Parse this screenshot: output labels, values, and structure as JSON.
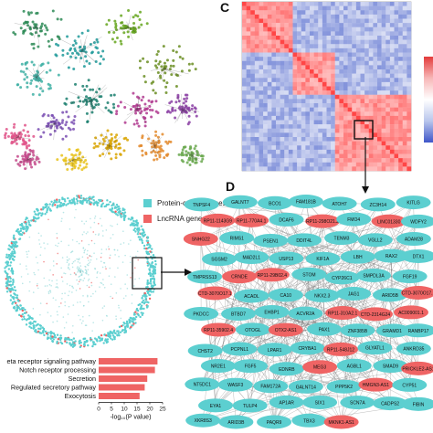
{
  "panels": {
    "c_letter": "C",
    "d_letter": "D"
  },
  "legend": [
    {
      "label": "Protein-coding genes",
      "color": "#5ccfd0"
    },
    {
      "label": "LncRNA genes",
      "color": "#ef6464"
    }
  ],
  "chart_data": {
    "type": "bar",
    "categories": [
      "eta receptor signaling pathway",
      "Notch receptor processing",
      "Secretion",
      "Regulated secretory pathway",
      "Exocytosis"
    ],
    "values": [
      23,
      22,
      19,
      18,
      16
    ],
    "xlabel": "-log₁₀(P value)",
    "ticks": [
      "0",
      "5",
      "10",
      "15",
      "20",
      "25"
    ],
    "xlim": [
      0,
      25
    ],
    "color": "#ef6464"
  },
  "network": {
    "nodes": [
      {
        "label": "TNPSF4",
        "type": "protein"
      },
      {
        "label": "GALNT7",
        "type": "protein"
      },
      {
        "label": "BCO1",
        "type": "protein"
      },
      {
        "label": "FAM181B",
        "type": "protein"
      },
      {
        "label": "ATOH7",
        "type": "protein"
      },
      {
        "label": "ZC3H14",
        "type": "protein"
      },
      {
        "label": "KITLG",
        "type": "protein"
      },
      {
        "label": "RP11-1143G9",
        "type": "lncrna"
      },
      {
        "label": "RP11-770A4.1",
        "type": "lncrna"
      },
      {
        "label": "DCAF6",
        "type": "protein"
      },
      {
        "label": "RP11-298O21.2",
        "type": "lncrna"
      },
      {
        "label": "FMO4",
        "type": "protein"
      },
      {
        "label": "LINC01330",
        "type": "lncrna"
      },
      {
        "label": "WDFY2",
        "type": "protein"
      },
      {
        "label": "SNHG22",
        "type": "lncrna"
      },
      {
        "label": "RIMS1",
        "type": "protein"
      },
      {
        "label": "PSEN1",
        "type": "protein"
      },
      {
        "label": "DDIT4L",
        "type": "protein"
      },
      {
        "label": "TENM3",
        "type": "protein"
      },
      {
        "label": "VGLL2",
        "type": "protein"
      },
      {
        "label": "ADAM28",
        "type": "protein"
      },
      {
        "label": "SGSM2",
        "type": "protein"
      },
      {
        "label": "MAD2L1",
        "type": "protein"
      },
      {
        "label": "USP13",
        "type": "protein"
      },
      {
        "label": "KIF1A",
        "type": "protein"
      },
      {
        "label": "LBH",
        "type": "protein"
      },
      {
        "label": "RAX2",
        "type": "protein"
      },
      {
        "label": "DTX1",
        "type": "protein"
      },
      {
        "label": "TMPRSS13",
        "type": "protein"
      },
      {
        "label": "CRNDE",
        "type": "lncrna"
      },
      {
        "label": "RP11-29B02.4",
        "type": "lncrna"
      },
      {
        "label": "STOM",
        "type": "protein"
      },
      {
        "label": "CYP26C1",
        "type": "protein"
      },
      {
        "label": "SMPDL3A",
        "type": "protein"
      },
      {
        "label": "FGF19",
        "type": "protein"
      },
      {
        "label": "CTD-3070O17.1",
        "type": "lncrna"
      },
      {
        "label": "ACADL",
        "type": "protein"
      },
      {
        "label": "CA10",
        "type": "protein"
      },
      {
        "label": "NKX2.3",
        "type": "protein"
      },
      {
        "label": "JAG1",
        "type": "protein"
      },
      {
        "label": "ARID5B",
        "type": "protein"
      },
      {
        "label": "CTD-3070O17.1",
        "type": "lncrna"
      },
      {
        "label": "PKDCC",
        "type": "protein"
      },
      {
        "label": "BTBD7",
        "type": "protein"
      },
      {
        "label": "EHBP1",
        "type": "protein"
      },
      {
        "label": "ACVR2A",
        "type": "protein"
      },
      {
        "label": "RP11-310A2.1",
        "type": "lncrna"
      },
      {
        "label": "CTD-2314G24",
        "type": "lncrna"
      },
      {
        "label": "AC009001.1",
        "type": "lncrna"
      },
      {
        "label": "RP11-35902.4",
        "type": "lncrna"
      },
      {
        "label": "OTOGL",
        "type": "protein"
      },
      {
        "label": "OTX2-AS1",
        "type": "lncrna"
      },
      {
        "label": "PAX1",
        "type": "protein"
      },
      {
        "label": "ZNF385B",
        "type": "protein"
      },
      {
        "label": "GRAMD1B",
        "type": "protein"
      },
      {
        "label": "RANBP17",
        "type": "protein"
      },
      {
        "label": "CHST2",
        "type": "protein"
      },
      {
        "label": "PCPNL1",
        "type": "protein"
      },
      {
        "label": "LPAR1",
        "type": "protein"
      },
      {
        "label": "CRYBA1",
        "type": "protein"
      },
      {
        "label": "RP11-548J12",
        "type": "lncrna"
      },
      {
        "label": "GLYATL1",
        "type": "protein"
      },
      {
        "label": "ANKRD35",
        "type": "protein"
      },
      {
        "label": "NR2E1",
        "type": "protein"
      },
      {
        "label": "FGF5",
        "type": "protein"
      },
      {
        "label": "EDNRB",
        "type": "protein"
      },
      {
        "label": "MEG3",
        "type": "lncrna"
      },
      {
        "label": "AGBL1",
        "type": "protein"
      },
      {
        "label": "SMAD9",
        "type": "protein"
      },
      {
        "label": "PRICKLE2-AS1",
        "type": "lncrna"
      },
      {
        "label": "NT5DC1",
        "type": "protein"
      },
      {
        "label": "WASF3",
        "type": "protein"
      },
      {
        "label": "FAM172A",
        "type": "protein"
      },
      {
        "label": "GALNT14",
        "type": "protein"
      },
      {
        "label": "PPP5K2",
        "type": "protein"
      },
      {
        "label": "HMGN3-AS1",
        "type": "lncrna"
      },
      {
        "label": "CYP51",
        "type": "protein"
      },
      {
        "label": "EYA1",
        "type": "protein"
      },
      {
        "label": "TULP4",
        "type": "protein"
      },
      {
        "label": "AP1AR",
        "type": "protein"
      },
      {
        "label": "SIX1",
        "type": "protein"
      },
      {
        "label": "SCN7A",
        "type": "protein"
      },
      {
        "label": "CADPS2",
        "type": "protein"
      },
      {
        "label": "FIBIN",
        "type": "protein"
      },
      {
        "label": "XKR8S3",
        "type": "protein"
      },
      {
        "label": "ARID3B",
        "type": "protein"
      },
      {
        "label": "PAQR9",
        "type": "protein"
      },
      {
        "label": "TBX3",
        "type": "protein"
      },
      {
        "label": "MKNK1-AS1",
        "type": "lncrna"
      }
    ]
  }
}
